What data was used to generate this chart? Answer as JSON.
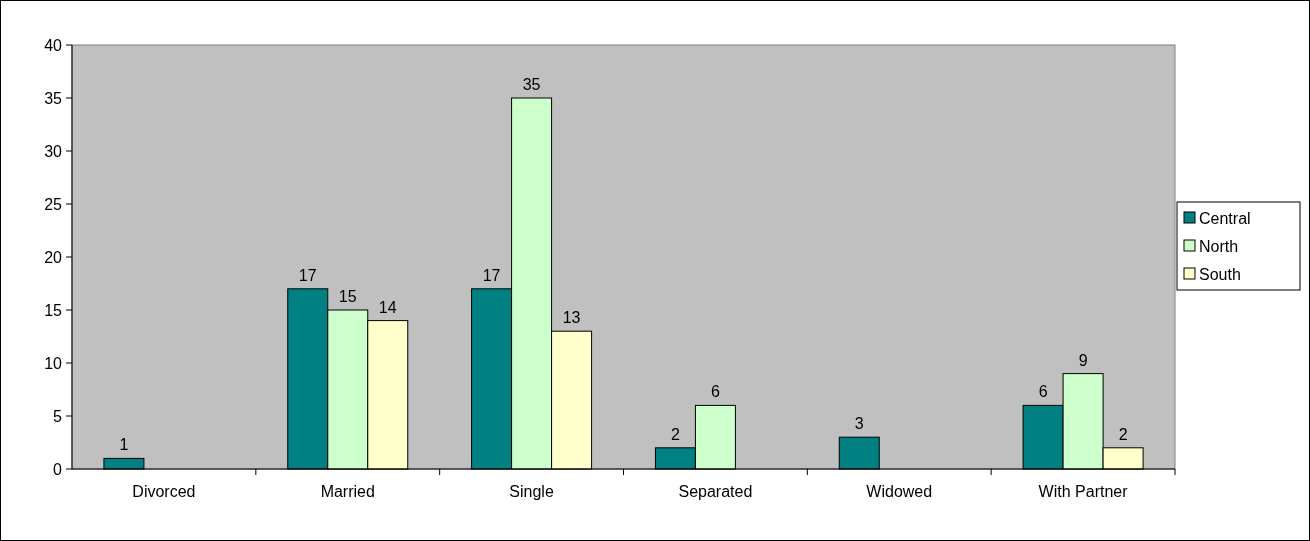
{
  "chart_data": {
    "type": "bar",
    "categories": [
      "Divorced",
      "Married",
      "Single",
      "Separated",
      "Widowed",
      "With Partner"
    ],
    "series": [
      {
        "name": "Central",
        "color": "#008080",
        "values": [
          1,
          17,
          17,
          2,
          3,
          6
        ]
      },
      {
        "name": "North",
        "color": "#ccffcc",
        "values": [
          null,
          15,
          35,
          6,
          null,
          9
        ]
      },
      {
        "name": "South",
        "color": "#ffffcc",
        "values": [
          null,
          14,
          13,
          null,
          null,
          2
        ]
      }
    ],
    "ylim": [
      0,
      40
    ],
    "yticks": [
      0,
      5,
      10,
      15,
      20,
      25,
      30,
      35,
      40
    ],
    "grid": false,
    "legend": "right",
    "data_labels": true
  }
}
